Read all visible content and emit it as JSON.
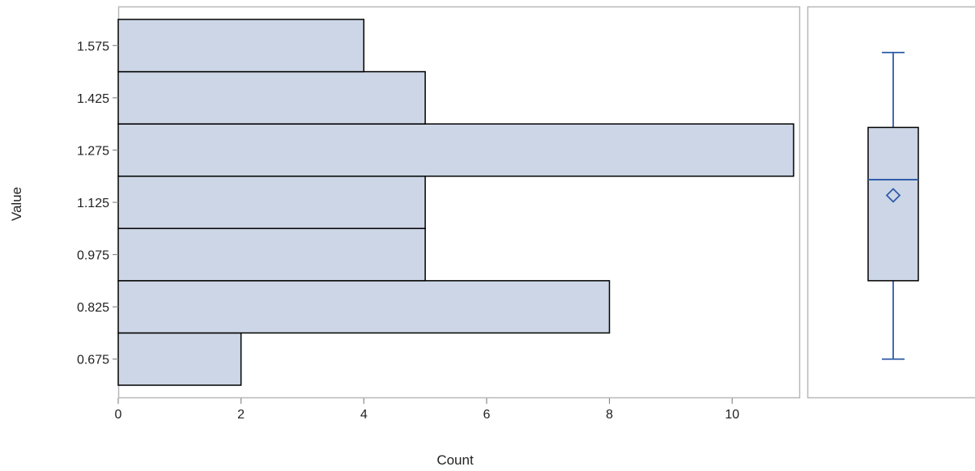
{
  "chart_data": [
    {
      "type": "bar",
      "orientation": "horizontal",
      "title": "",
      "xlabel": "Count",
      "ylabel": "Value",
      "categories": [
        "0.675",
        "0.825",
        "0.975",
        "1.125",
        "1.275",
        "1.425",
        "1.575"
      ],
      "values": [
        2,
        8,
        5,
        5,
        11,
        5,
        4
      ],
      "bin_width": 0.15,
      "ylim": [
        0.6,
        1.65
      ],
      "xlim": [
        0,
        11
      ],
      "xticks": [
        "0",
        "2",
        "4",
        "6",
        "8",
        "10"
      ],
      "grid": false,
      "colors": {
        "fill": "#ccd6e6",
        "stroke": "#000000",
        "frame": "#b8b8b8"
      }
    },
    {
      "type": "box",
      "min": 0.675,
      "q1": 0.9,
      "median": 1.19,
      "mean": 1.145,
      "q3": 1.34,
      "max": 1.555,
      "ylim": [
        0.6,
        1.65
      ],
      "colors": {
        "fill": "#ccd6e6",
        "stroke": "#000000",
        "line": "#2f5ca8"
      }
    }
  ]
}
